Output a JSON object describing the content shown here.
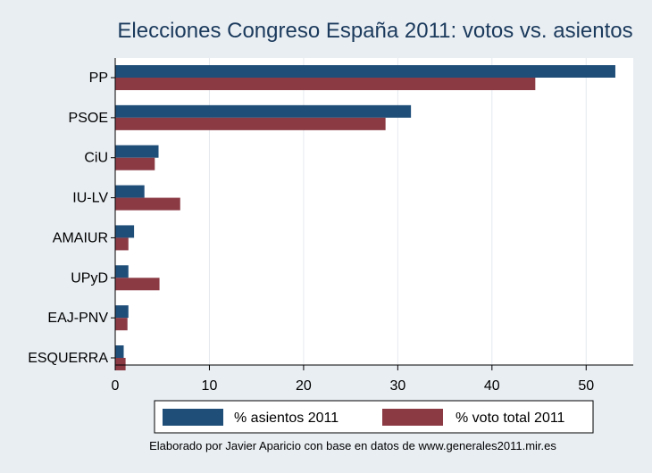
{
  "chart_data": {
    "type": "bar",
    "orientation": "horizontal",
    "title": "Elecciones Congreso España 2011: votos vs. asientos",
    "categories": [
      "PP",
      "PSOE",
      "CiU",
      "IU-LV",
      "AMAIUR",
      "UPyD",
      "EAJ-PNV",
      "ESQUERRA"
    ],
    "series": [
      {
        "name": "% asientos 2011",
        "color": "#1f4e79",
        "values": [
          53.1,
          31.4,
          4.6,
          3.1,
          2.0,
          1.4,
          1.4,
          0.9
        ]
      },
      {
        "name": "% voto total 2011",
        "color": "#8b3a44",
        "values": [
          44.6,
          28.7,
          4.2,
          6.9,
          1.4,
          4.7,
          1.3,
          1.1
        ]
      }
    ],
    "xlim": [
      0,
      55
    ],
    "xticks": [
      0,
      10,
      20,
      30,
      40,
      50
    ],
    "grid": true,
    "legend_position": "bottom",
    "note": "Elaborado por Javier Aparicio con base en datos de www.generales2011.mir.es"
  }
}
